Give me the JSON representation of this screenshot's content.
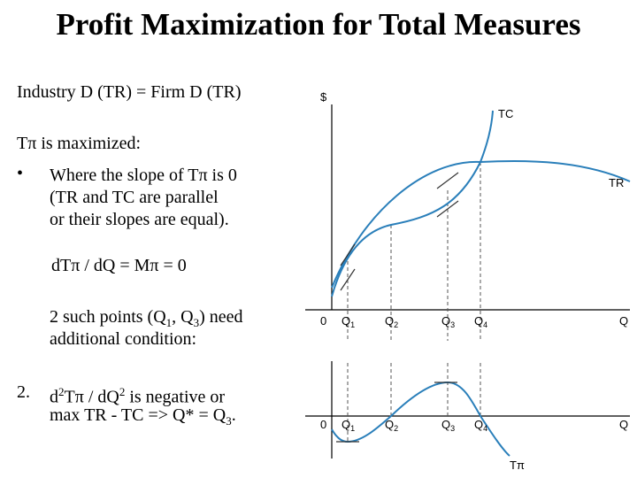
{
  "slide": {
    "title": "Profit Maximization for Total Measures",
    "line1": "Industry D (TR) = Firm D (TR)",
    "line2": "Tπ is maximized:",
    "bullet": "•",
    "bullet_l1": "Where the slope of Tπ is 0",
    "bullet_l2": "(TR and TC are parallel",
    "bullet_l3": "or their slopes are equal).",
    "formula": "dTπ / dQ = Mπ = 0",
    "points_a": "2 such points (Q",
    "points_sub1": "1",
    "points_b": ", Q",
    "points_sub2": "3",
    "points_c": ") need",
    "points_l2": "additional condition:",
    "cond_num": "2.",
    "cond_a": "d",
    "cond_sup1": "2",
    "cond_b": "Tπ / dQ",
    "cond_sup2": "2",
    "cond_c": " is negative or",
    "cond_l2a": "max TR - TC   => Q* = Q",
    "cond_l2sub": "3",
    "cond_l2end": "."
  },
  "diagram": {
    "upper": {
      "y_label": "$",
      "x_label": "Q",
      "origin_label": "0",
      "tc_label": "TC",
      "tr_label": "TR",
      "ticks": [
        {
          "main": "Q",
          "sub": "1"
        },
        {
          "main": "Q",
          "sub": "2"
        },
        {
          "main": "Q",
          "sub": "3"
        },
        {
          "main": "Q",
          "sub": "4"
        }
      ]
    },
    "lower": {
      "x_label": "Q",
      "origin_label": "0",
      "curve_label": "Tπ",
      "ticks": [
        {
          "main": "Q",
          "sub": "1"
        },
        {
          "main": "Q",
          "sub": "2"
        },
        {
          "main": "Q",
          "sub": "3"
        },
        {
          "main": "Q",
          "sub": "4"
        }
      ]
    },
    "colors": {
      "curve": "#2a7fba",
      "axis": "#000000",
      "guide": "#555555"
    }
  }
}
